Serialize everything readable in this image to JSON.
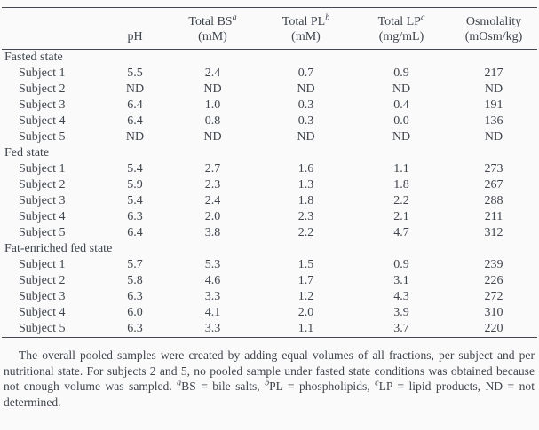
{
  "page": {
    "background_color": "#fafafa",
    "text_color": "#3f444c",
    "rule_color": "#43474e"
  },
  "table": {
    "columns": [
      {
        "line1": "",
        "sup": "",
        "line2": ""
      },
      {
        "line1": "",
        "sup": "",
        "line2": "pH"
      },
      {
        "line1": "Total BS",
        "sup": "a",
        "line2": "(mM)"
      },
      {
        "line1": "Total PL",
        "sup": "b",
        "line2": "(mM)"
      },
      {
        "line1": "Total LP",
        "sup": "c",
        "line2": "(mg/mL)"
      },
      {
        "line1": "Osmolality",
        "sup": "",
        "line2": "(mOsm/kg)"
      }
    ],
    "sections": [
      {
        "label": "Fasted state",
        "rows": [
          {
            "label": "Subject 1",
            "values": [
              "5.5",
              "2.4",
              "0.7",
              "0.9",
              "217"
            ]
          },
          {
            "label": "Subject 2",
            "values": [
              "ND",
              "ND",
              "ND",
              "ND",
              "ND"
            ]
          },
          {
            "label": "Subject 3",
            "values": [
              "6.4",
              "1.0",
              "0.3",
              "0.4",
              "191"
            ]
          },
          {
            "label": "Subject 4",
            "values": [
              "6.4",
              "0.8",
              "0.3",
              "0.0",
              "136"
            ]
          },
          {
            "label": "Subject 5",
            "values": [
              "ND",
              "ND",
              "ND",
              "ND",
              "ND"
            ]
          }
        ]
      },
      {
        "label": "Fed state",
        "rows": [
          {
            "label": "Subject 1",
            "values": [
              "5.4",
              "2.7",
              "1.6",
              "1.1",
              "273"
            ]
          },
          {
            "label": "Subject 2",
            "values": [
              "5.9",
              "2.3",
              "1.3",
              "1.8",
              "267"
            ]
          },
          {
            "label": "Subject 3",
            "values": [
              "5.4",
              "2.4",
              "1.8",
              "2.2",
              "288"
            ]
          },
          {
            "label": "Subject 4",
            "values": [
              "6.3",
              "2.0",
              "2.3",
              "2.1",
              "211"
            ]
          },
          {
            "label": "Subject 5",
            "values": [
              "6.4",
              "3.8",
              "2.2",
              "4.7",
              "312"
            ]
          }
        ]
      },
      {
        "label": "Fat-enriched fed state",
        "rows": [
          {
            "label": "Subject 1",
            "values": [
              "5.7",
              "5.3",
              "1.5",
              "0.9",
              "239"
            ]
          },
          {
            "label": "Subject 2",
            "values": [
              "5.8",
              "4.6",
              "1.7",
              "3.1",
              "226"
            ]
          },
          {
            "label": "Subject 3",
            "values": [
              "6.3",
              "3.3",
              "1.2",
              "4.3",
              "272"
            ]
          },
          {
            "label": "Subject 4",
            "values": [
              "6.0",
              "4.1",
              "2.0",
              "3.9",
              "310"
            ]
          },
          {
            "label": "Subject 5",
            "values": [
              "6.3",
              "3.3",
              "1.1",
              "3.7",
              "220"
            ]
          }
        ]
      }
    ]
  },
  "footnote": {
    "segments": [
      {
        "text": "The overall pooled samples were created by adding equal volumes of all fractions, per subject and per nutritional state. For subjects 2 and 5, no pooled sample under fasted state conditions was obtained because not enough volume was sampled. ",
        "sup": false
      },
      {
        "text": "a",
        "sup": true
      },
      {
        "text": "BS = bile salts, ",
        "sup": false
      },
      {
        "text": "b",
        "sup": true
      },
      {
        "text": "PL = phospholipids, ",
        "sup": false
      },
      {
        "text": "c",
        "sup": true
      },
      {
        "text": "LP = lipid products, ND = not determined.",
        "sup": false
      }
    ]
  }
}
